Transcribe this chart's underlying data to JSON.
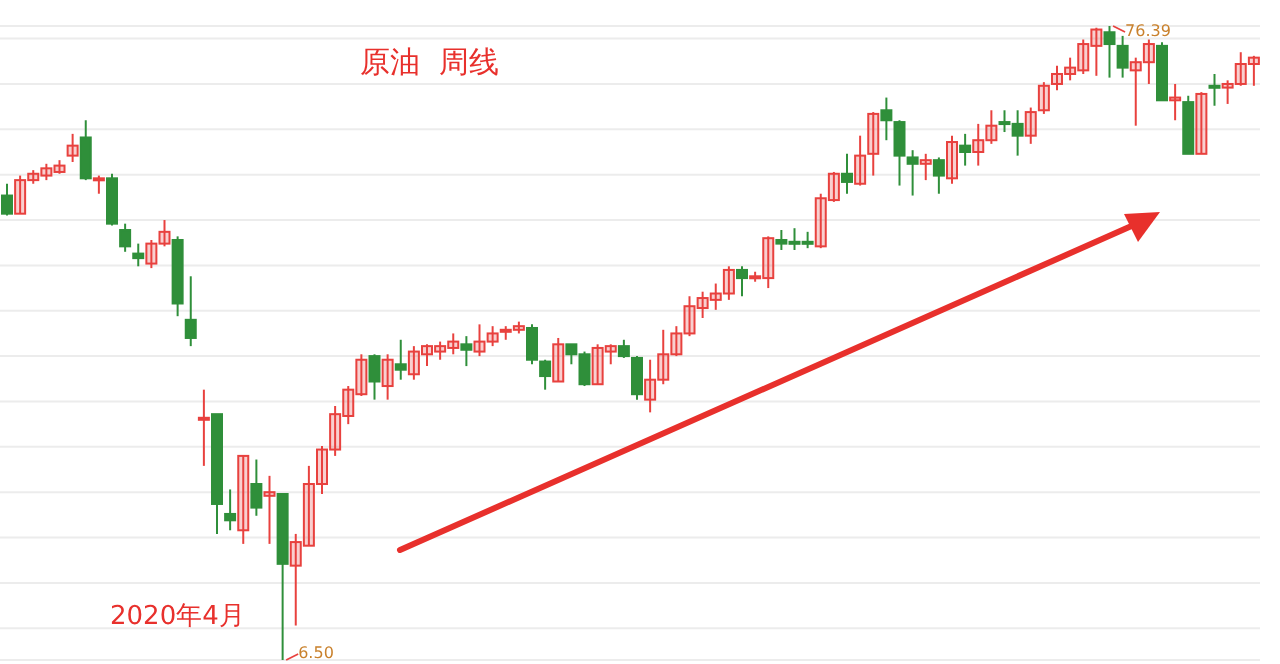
{
  "chart_data": {
    "type": "candlestick",
    "title": "原油  周线",
    "categories": [
      null,
      null,
      null,
      null,
      null,
      null,
      null,
      null,
      null,
      null,
      null,
      null,
      null,
      null,
      null,
      null,
      null,
      null,
      null,
      null,
      null,
      null,
      null,
      null,
      null,
      null,
      null,
      null,
      null,
      null,
      null,
      null,
      null,
      null,
      null,
      null,
      null,
      null,
      null,
      null,
      null,
      null,
      null,
      null,
      null,
      null,
      null,
      null,
      null,
      null,
      null,
      null,
      null,
      null,
      null,
      null,
      null,
      null,
      null,
      null,
      null,
      null,
      null,
      null,
      null,
      null,
      null,
      null,
      null,
      null,
      null,
      null,
      null,
      null,
      null,
      null,
      null,
      null,
      null,
      null,
      null,
      null,
      null,
      null,
      null,
      null,
      null,
      null,
      null,
      null,
      null,
      null,
      null,
      null,
      null,
      null
    ],
    "ohlc": [
      [
        57.7,
        59.0,
        55.5,
        55.7
      ],
      [
        55.7,
        59.9,
        55.7,
        59.4
      ],
      [
        59.4,
        60.5,
        59.0,
        60.1
      ],
      [
        59.9,
        61.2,
        59.4,
        60.7
      ],
      [
        60.3,
        61.6,
        60.1,
        61.0
      ],
      [
        62.1,
        64.5,
        61.4,
        63.2
      ],
      [
        64.1,
        66.0,
        59.4,
        59.6
      ],
      [
        59.4,
        59.9,
        57.9,
        59.6
      ],
      [
        59.6,
        60.1,
        54.4,
        54.6
      ],
      [
        53.9,
        54.6,
        51.5,
        52.1
      ],
      [
        51.3,
        52.4,
        49.9,
        50.8
      ],
      [
        50.2,
        52.8,
        49.7,
        52.4
      ],
      [
        52.4,
        55.0,
        52.1,
        53.7
      ],
      [
        52.8,
        53.2,
        44.4,
        45.8
      ],
      [
        44.0,
        48.8,
        41.1,
        42.0
      ],
      [
        33.0,
        36.3,
        27.9,
        33.2
      ],
      [
        33.6,
        33.6,
        20.4,
        23.7
      ],
      [
        22.6,
        25.3,
        20.8,
        21.9
      ],
      [
        20.8,
        29.0,
        19.3,
        29.0
      ],
      [
        25.9,
        28.6,
        22.4,
        23.3
      ],
      [
        24.6,
        26.8,
        19.3,
        25.0
      ],
      [
        24.8,
        24.8,
        6.5,
        17.1
      ],
      [
        16.9,
        20.4,
        10.3,
        19.5
      ],
      [
        19.1,
        27.9,
        19.1,
        25.9
      ],
      [
        25.9,
        30.1,
        24.8,
        29.7
      ],
      [
        29.7,
        34.5,
        29.0,
        33.6
      ],
      [
        33.4,
        36.7,
        32.5,
        36.3
      ],
      [
        35.8,
        40.2,
        35.6,
        39.6
      ],
      [
        40.0,
        40.2,
        35.2,
        37.2
      ],
      [
        36.7,
        40.2,
        35.2,
        39.6
      ],
      [
        39.1,
        41.8,
        37.4,
        38.5
      ],
      [
        38.0,
        41.1,
        37.4,
        40.5
      ],
      [
        40.2,
        41.3,
        38.9,
        41.1
      ],
      [
        40.5,
        41.6,
        39.6,
        41.1
      ],
      [
        40.9,
        42.5,
        40.2,
        41.6
      ],
      [
        41.3,
        42.2,
        38.9,
        40.7
      ],
      [
        40.5,
        43.5,
        40.0,
        41.6
      ],
      [
        41.6,
        43.3,
        41.1,
        42.5
      ],
      [
        42.7,
        43.3,
        41.8,
        42.9
      ],
      [
        42.9,
        43.8,
        42.5,
        43.3
      ],
      [
        43.1,
        43.5,
        39.1,
        39.6
      ],
      [
        39.4,
        39.6,
        36.3,
        37.8
      ],
      [
        37.2,
        42.0,
        37.2,
        41.3
      ],
      [
        41.3,
        41.3,
        39.1,
        40.2
      ],
      [
        40.2,
        40.5,
        36.7,
        36.9
      ],
      [
        36.9,
        41.3,
        36.9,
        40.9
      ],
      [
        40.5,
        41.3,
        39.1,
        41.1
      ],
      [
        41.1,
        41.8,
        39.8,
        40.0
      ],
      [
        39.8,
        40.0,
        35.2,
        35.8
      ],
      [
        35.2,
        39.6,
        33.8,
        37.4
      ],
      [
        37.4,
        42.9,
        36.9,
        40.2
      ],
      [
        40.2,
        43.3,
        40.0,
        42.5
      ],
      [
        42.5,
        46.6,
        42.2,
        45.5
      ],
      [
        45.3,
        47.1,
        44.2,
        46.4
      ],
      [
        46.2,
        48.0,
        45.1,
        46.9
      ],
      [
        46.9,
        49.9,
        46.2,
        49.5
      ],
      [
        49.5,
        49.9,
        46.6,
        48.6
      ],
      [
        48.6,
        49.3,
        48.2,
        48.8
      ],
      [
        48.6,
        53.2,
        47.5,
        53.0
      ],
      [
        52.8,
        53.9,
        51.7,
        52.4
      ],
      [
        52.6,
        54.1,
        51.7,
        52.4
      ],
      [
        52.6,
        53.7,
        51.9,
        52.4
      ],
      [
        52.1,
        57.9,
        51.9,
        57.4
      ],
      [
        57.2,
        60.3,
        57.0,
        60.1
      ],
      [
        60.1,
        62.3,
        57.9,
        59.2
      ],
      [
        59.0,
        64.3,
        58.8,
        62.1
      ],
      [
        62.3,
        66.9,
        59.9,
        66.7
      ],
      [
        67.1,
        68.5,
        63.8,
        66.0
      ],
      [
        65.8,
        66.0,
        58.8,
        62.1
      ],
      [
        61.9,
        62.7,
        57.7,
        61.2
      ],
      [
        61.2,
        62.3,
        59.4,
        61.6
      ],
      [
        61.6,
        61.9,
        57.9,
        59.9
      ],
      [
        59.6,
        64.3,
        59.0,
        63.6
      ],
      [
        63.2,
        64.5,
        61.0,
        62.5
      ],
      [
        62.5,
        65.6,
        61.0,
        63.8
      ],
      [
        63.8,
        67.1,
        63.4,
        65.4
      ],
      [
        65.8,
        67.1,
        64.7,
        65.6
      ],
      [
        65.6,
        67.1,
        62.1,
        64.3
      ],
      [
        64.3,
        67.4,
        63.4,
        66.9
      ],
      [
        67.1,
        70.2,
        66.7,
        69.8
      ],
      [
        70.0,
        72.0,
        69.3,
        71.1
      ],
      [
        71.1,
        72.9,
        70.4,
        71.8
      ],
      [
        71.5,
        74.9,
        71.1,
        74.4
      ],
      [
        74.2,
        76.2,
        70.9,
        76.0
      ],
      [
        75.7,
        76.39,
        70.7,
        74.4
      ],
      [
        74.2,
        75.3,
        70.7,
        71.8
      ],
      [
        71.5,
        72.9,
        65.4,
        72.4
      ],
      [
        72.4,
        74.9,
        70.0,
        74.4
      ],
      [
        74.2,
        74.6,
        68.2,
        68.2
      ],
      [
        68.2,
        70.0,
        66.0,
        68.5
      ],
      [
        68.0,
        68.7,
        62.3,
        62.3
      ],
      [
        62.3,
        69.1,
        62.3,
        68.9
      ],
      [
        69.8,
        71.1,
        67.6,
        69.6
      ],
      [
        69.6,
        70.4,
        67.8,
        70.0
      ],
      [
        70.0,
        73.5,
        69.8,
        72.2
      ],
      [
        72.2,
        73.1,
        69.8,
        72.9
      ]
    ],
    "colors": [
      "#2f8f3a",
      "#e8413e",
      "#e8413e",
      "#e8413e",
      "#e8413e",
      "#e8413e",
      "#2f8f3a",
      "#e8413e",
      "#2f8f3a",
      "#2f8f3a",
      "#2f8f3a",
      "#e8413e",
      "#e8413e",
      "#2f8f3a",
      "#2f8f3a",
      "#e8413e",
      "#2f8f3a",
      "#2f8f3a",
      "#e8413e",
      "#2f8f3a",
      "#e8413e",
      "#2f8f3a",
      "#e8413e",
      "#e8413e",
      "#e8413e",
      "#e8413e",
      "#e8413e",
      "#e8413e",
      "#2f8f3a",
      "#e8413e",
      "#2f8f3a",
      "#e8413e",
      "#e8413e",
      "#e8413e",
      "#e8413e",
      "#2f8f3a",
      "#e8413e",
      "#e8413e",
      "#e8413e",
      "#e8413e",
      "#2f8f3a",
      "#2f8f3a",
      "#e8413e",
      "#2f8f3a",
      "#2f8f3a",
      "#e8413e",
      "#e8413e",
      "#2f8f3a",
      "#2f8f3a",
      "#e8413e",
      "#e8413e",
      "#e8413e",
      "#e8413e",
      "#e8413e",
      "#e8413e",
      "#e8413e",
      "#2f8f3a",
      "#e8413e",
      "#e8413e",
      "#2f8f3a",
      "#2f8f3a",
      "#2f8f3a",
      "#e8413e",
      "#e8413e",
      "#2f8f3a",
      "#e8413e",
      "#e8413e",
      "#2f8f3a",
      "#2f8f3a",
      "#2f8f3a",
      "#e8413e",
      "#2f8f3a",
      "#e8413e",
      "#2f8f3a",
      "#e8413e",
      "#e8413e",
      "#2f8f3a",
      "#2f8f3a",
      "#e8413e",
      "#e8413e",
      "#e8413e",
      "#e8413e",
      "#e8413e",
      "#e8413e",
      "#2f8f3a",
      "#2f8f3a",
      "#e8413e",
      "#e8413e",
      "#2f8f3a",
      "#e8413e",
      "#2f8f3a",
      "#e8413e",
      "#2f8f3a",
      "#e8413e",
      "#e8413e",
      "#e8413e"
    ],
    "annotations": [
      "2020年4月",
      "6.50",
      "76.39"
    ],
    "grid": "y",
    "yticks": [
      {
        "value": 10,
        "label": null
      },
      {
        "value": 15,
        "label": null
      },
      {
        "value": 20,
        "label": null
      },
      {
        "value": 25,
        "label": null
      },
      {
        "value": 30,
        "label": null
      },
      {
        "value": 35,
        "label": null
      },
      {
        "value": 40,
        "label": null
      },
      {
        "value": 45,
        "label": null
      },
      {
        "value": 50,
        "label": null
      },
      {
        "value": 55,
        "label": null
      },
      {
        "value": 60,
        "label": null
      },
      {
        "value": 65,
        "label": null
      },
      {
        "value": 70,
        "label": null
      },
      {
        "value": 75,
        "label": null
      }
    ],
    "tick_labels": false
  }
}
